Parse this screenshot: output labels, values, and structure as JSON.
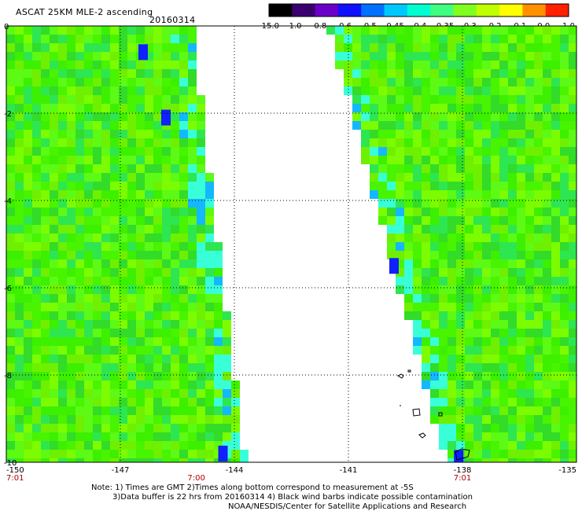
{
  "title": "ASCAT 25KM MLE-2 ascending",
  "date": "20160314",
  "colorbar": {
    "labels": [
      "-15.0",
      "-1.0",
      "-0.8",
      "-0.6",
      "-0.5",
      "-0.45",
      "-0.4",
      "-0.35",
      "-0.3",
      "-0.2",
      "-0.1",
      "0.0",
      "1.0"
    ],
    "colors": [
      "#000000",
      "#3a0070",
      "#6a00c8",
      "#1010ff",
      "#0070ff",
      "#00c8ff",
      "#00ffd0",
      "#40ff80",
      "#80ff20",
      "#c0ff00",
      "#ffff00",
      "#ff9000",
      "#ff2000"
    ]
  },
  "chart_data": {
    "type": "heatmap",
    "title": "ASCAT 25KM MLE-2 ascending",
    "xlim": [
      -150,
      -135
    ],
    "ylim": [
      -10,
      0
    ],
    "xticks": [
      "-150",
      "-147",
      "-144",
      "-141",
      "-138",
      "-135"
    ],
    "yticks": [
      "0",
      "-2",
      "-4",
      "-6",
      "-8",
      "-10"
    ],
    "time_labels": [
      {
        "label": "7:01",
        "lon": -150
      },
      {
        "label": "7:00",
        "lon": -145
      },
      {
        "label": "7:01",
        "lon": -138
      }
    ],
    "grid": true,
    "swaths": [
      {
        "name": "",
        "lat_top": 0,
        "lon_right_top": -145.1,
        "lat_bottom": -10,
        "lon_right_bottom": -143.7
      },
      {
        "name": "",
        "lat_top": 0,
        "lon_left_top": -141.5,
        "lat_bottom": -10,
        "lon_left_bottom": -138.4
      }
    ]
  },
  "notes": {
    "line1": "Note: 1) Times are GMT 2)Times along bottom correspond to measurement at -5S",
    "line2": "3)Data buffer is 22 hrs from 20160314 4) Black wind barbs indicate possible contamination",
    "line3": "NOAA/NESDIS/Center for Satellite Applications and Research"
  }
}
